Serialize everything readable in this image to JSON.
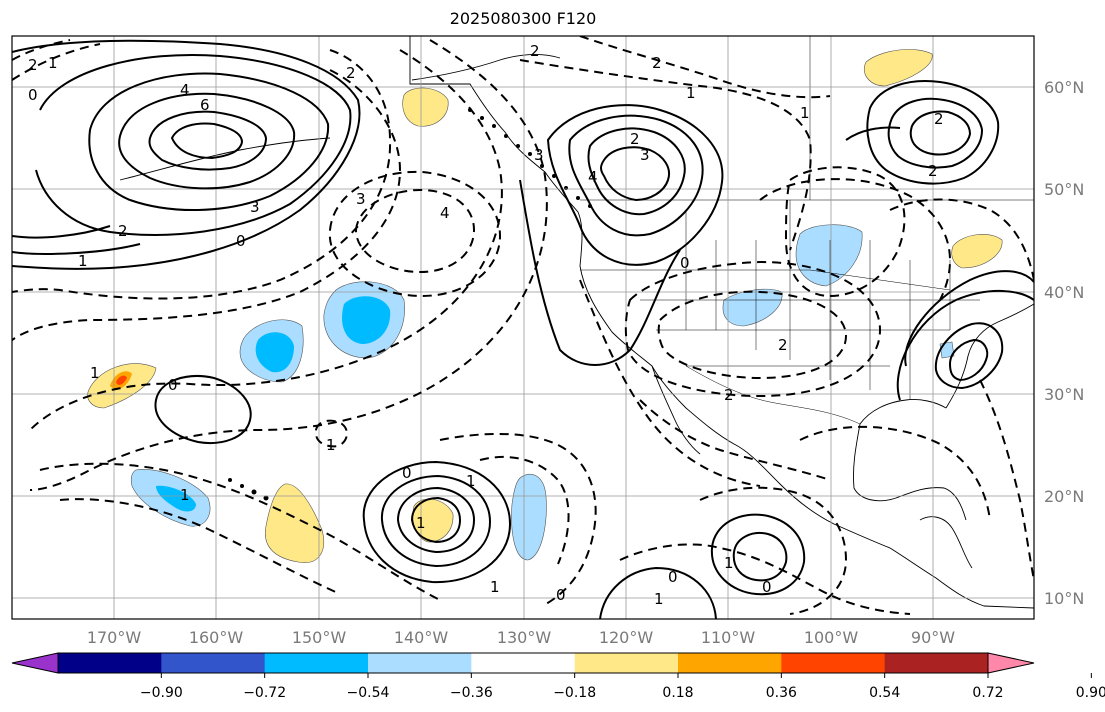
{
  "title": "2025080300 F120",
  "longitude_ticks": [
    "170°W",
    "160°W",
    "150°W",
    "140°W",
    "130°W",
    "120°W",
    "110°W",
    "100°W",
    "90°W"
  ],
  "latitude_ticks": [
    "60°N",
    "50°N",
    "40°N",
    "30°N",
    "20°N",
    "10°N"
  ],
  "colorbar": {
    "colors": [
      "#9933cc",
      "#000088",
      "#3355cc",
      "#00bbff",
      "#aaddff",
      "#ffffff",
      "#ffe888",
      "#ffa500",
      "#ff4400",
      "#aa2222",
      "#ff88aa"
    ],
    "tick_labels": [
      "−0.90",
      "−0.72",
      "−0.54",
      "−0.36",
      "−0.18",
      "0.18",
      "0.36",
      "0.54",
      "0.72",
      "0.90"
    ]
  },
  "contour_labels": [
    "2",
    "1",
    "0",
    "4",
    "6",
    "3",
    "2",
    "1",
    "0",
    "2",
    "3",
    "4",
    "0",
    "1",
    "2",
    "2",
    "2",
    "3",
    "4",
    "3",
    "2",
    "1",
    "2",
    "1",
    "1",
    "2",
    "2",
    "0",
    "1",
    "1",
    "1",
    "0",
    "1",
    "1",
    "0",
    "0",
    "1",
    "0"
  ]
}
